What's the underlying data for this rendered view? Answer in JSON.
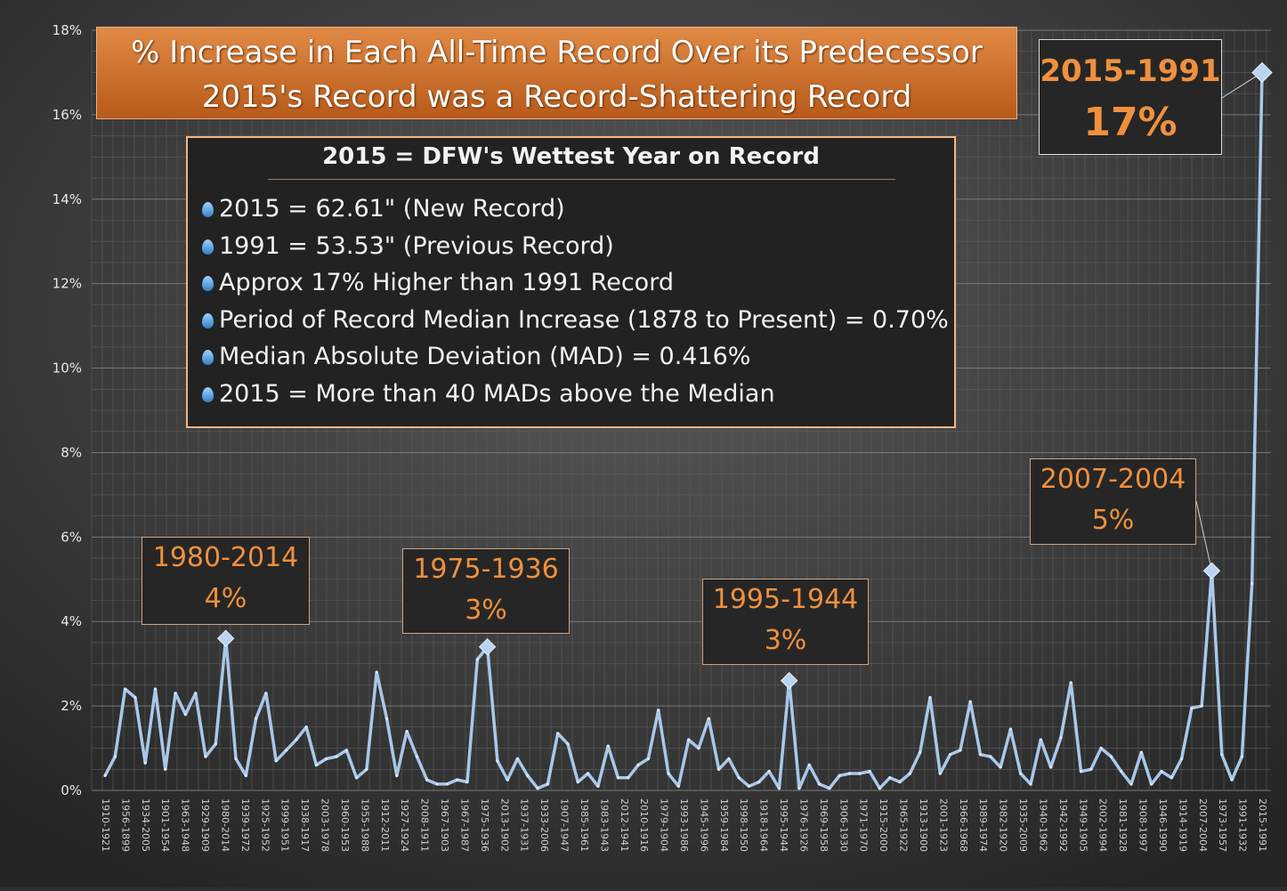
{
  "title": {
    "line1": "% Increase in Each All-Time Record Over its Predecessor",
    "line2": "2015's Record was a Record-Shattering Record"
  },
  "info_box": {
    "heading": "2015 = DFW's Wettest Year on Record",
    "bullets": [
      "2015 = 62.61\" (New Record)",
      "1991 = 53.53\" (Previous Record)",
      "Approx 17% Higher than 1991 Record",
      "Period of Record Median Increase (1878 to Present) = 0.70%",
      "Median Absolute Deviation (MAD) = 0.416%",
      "2015 = More than 40 MADs above the Median"
    ]
  },
  "callouts": [
    {
      "label": "1980-2014",
      "value": "4%"
    },
    {
      "label": "1975-1936",
      "value": "3%"
    },
    {
      "label": "1995-1944",
      "value": "3%"
    },
    {
      "label": "2007-2004",
      "value": "5%"
    },
    {
      "label": "2015-1991",
      "value": "17%"
    }
  ],
  "colors": {
    "background": "#2e2e2e",
    "line": "#a9c8ea",
    "title_box": "#d07030",
    "callout_text": "#f0903e"
  },
  "chart_data": {
    "type": "line",
    "title": "",
    "xlabel": "",
    "ylabel": "",
    "ylim": [
      0,
      18
    ],
    "yticks": [
      "0%",
      "2%",
      "4%",
      "6%",
      "8%",
      "10%",
      "12%",
      "14%",
      "16%",
      "18%"
    ],
    "grid": true,
    "x_tick_labels": [
      "1910-1921",
      "1956-1899",
      "1934-2005",
      "1901-1954",
      "1963-1948",
      "1929-1909",
      "1980-2014",
      "1939-1972",
      "1925-1952",
      "1999-1951",
      "1938-1917",
      "2003-1978",
      "1960-1953",
      "1955-1988",
      "1912-2011",
      "1927-1924",
      "2008-1911",
      "1967-1903",
      "1967-1987",
      "1975-1936",
      "2013-1902",
      "1937-1931",
      "1933-2006",
      "1907-1947",
      "1985-1961",
      "1983-1943",
      "2012-1941",
      "2010-1916",
      "1979-1904",
      "1993-1986",
      "1945-1996",
      "1959-1984",
      "1998-1950",
      "1918-1964",
      "1995-1944",
      "1976-1926",
      "1969-1958",
      "1906-1930",
      "1971-1970",
      "1915-2000",
      "1965-1922",
      "1913-1900",
      "2001-1923",
      "1966-1968",
      "1989-1974",
      "1982-1920",
      "1935-2009",
      "1940-1962",
      "1942-1992",
      "1949-1905",
      "2002-1994",
      "1981-1928",
      "1908-1997",
      "1946-1990",
      "1914-1919",
      "2007-2004",
      "1973-1957",
      "1991-1932",
      "2015-1991"
    ],
    "values": [
      0.35,
      0.8,
      2.4,
      2.2,
      0.65,
      2.4,
      0.5,
      2.3,
      1.8,
      2.3,
      0.8,
      1.1,
      3.6,
      0.75,
      0.35,
      1.7,
      2.3,
      0.7,
      0.95,
      1.2,
      1.5,
      0.6,
      0.75,
      0.8,
      0.95,
      0.3,
      0.5,
      2.8,
      1.7,
      0.35,
      1.4,
      0.8,
      0.25,
      0.15,
      0.15,
      0.25,
      0.2,
      3.1,
      3.4,
      0.7,
      0.25,
      0.75,
      0.35,
      0.05,
      0.15,
      1.35,
      1.1,
      0.2,
      0.4,
      0.1,
      1.05,
      0.3,
      0.3,
      0.6,
      0.75,
      1.9,
      0.4,
      0.1,
      1.2,
      1.0,
      1.7,
      0.5,
      0.75,
      0.3,
      0.1,
      0.2,
      0.45,
      0.05,
      2.6,
      0.05,
      0.6,
      0.15,
      0.05,
      0.35,
      0.4,
      0.4,
      0.45,
      0.05,
      0.3,
      0.2,
      0.4,
      0.9,
      2.2,
      0.4,
      0.85,
      0.95,
      2.1,
      0.85,
      0.8,
      0.55,
      1.45,
      0.4,
      0.15,
      1.2,
      0.55,
      1.25,
      2.55,
      0.45,
      0.5,
      1.0,
      0.8,
      0.45,
      0.15,
      0.9,
      0.15,
      0.45,
      0.3,
      0.75,
      1.95,
      2.0,
      5.2,
      0.85,
      0.25,
      0.8,
      4.9,
      17.0
    ],
    "highlights": [
      {
        "label": "1980-2014",
        "value": 3.6
      },
      {
        "label": "1975-1936",
        "value": 3.4
      },
      {
        "label": "1995-1944",
        "value": 2.6
      },
      {
        "label": "2007-2004",
        "value": 5.2
      },
      {
        "label": "2015-1991",
        "value": 17.0
      }
    ]
  }
}
